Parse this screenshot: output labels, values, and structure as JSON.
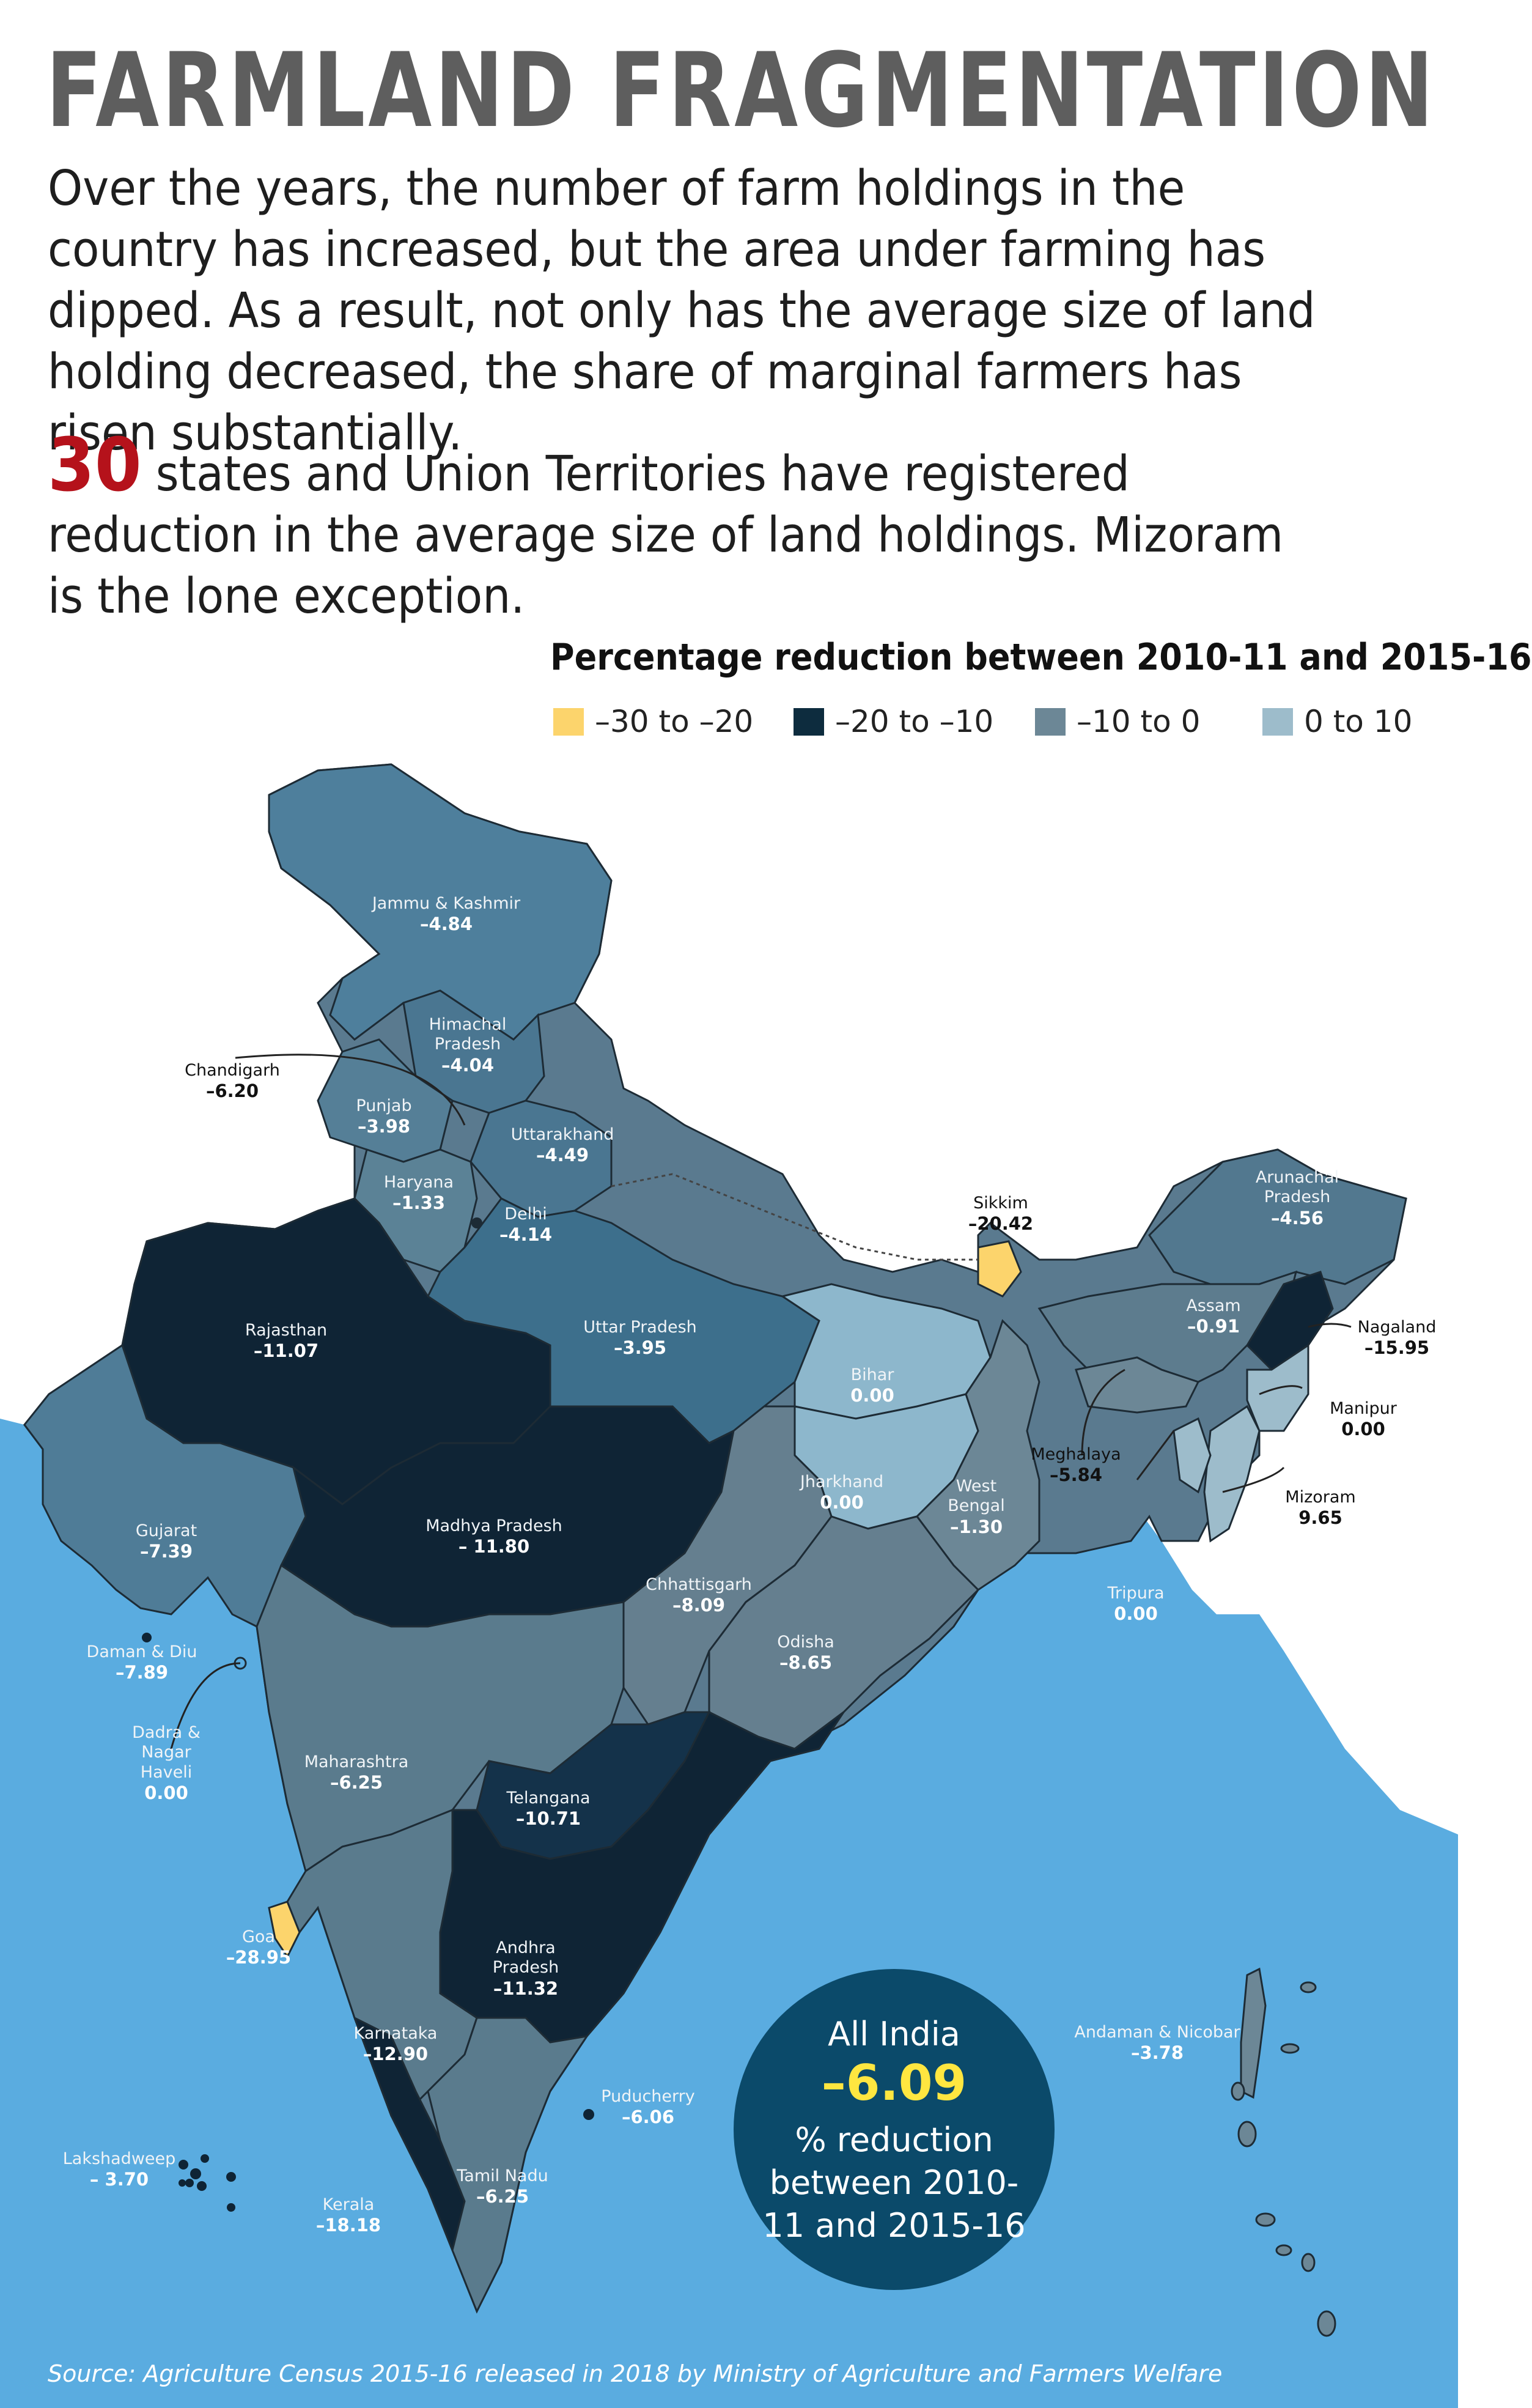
{
  "title": "FARMLAND FRAGMENTATION",
  "intro": "Over the years, the number of farm holdings in the country has increased, but the area under farming has dipped. As a result, not only has the average size of land holding decreased, the share of marginal farmers has risen substantially.",
  "stat": {
    "number": "30",
    "text": "states and Union Territories have registered reduction in the average size of land holdings. Mizoram is the lone exception."
  },
  "legend": {
    "title": "Percentage reduction between 2010-11 and 2015-16",
    "items": [
      {
        "label": "–30 to –20",
        "color": "#fcd46c"
      },
      {
        "label": "–20 to –10",
        "color": "#0d2c3e"
      },
      {
        "label": "–10 to 0",
        "color": "#6c8796"
      },
      {
        "label": "0 to 10",
        "color": "#9dbccb"
      }
    ]
  },
  "regions": [
    {
      "name": "Jammu & Kashmir",
      "value": "–4.84"
    },
    {
      "name": "Himachal Pradesh",
      "value": "–4.04"
    },
    {
      "name": "Chandigarh",
      "value": "–6.20"
    },
    {
      "name": "Punjab",
      "value": "–3.98"
    },
    {
      "name": "Uttarakhand",
      "value": "–4.49"
    },
    {
      "name": "Haryana",
      "value": "–1.33"
    },
    {
      "name": "Delhi",
      "value": "–4.14"
    },
    {
      "name": "Sikkim",
      "value": "–20.42"
    },
    {
      "name": "Arunachal Pradesh",
      "value": "–4.56"
    },
    {
      "name": "Rajasthan",
      "value": "–11.07"
    },
    {
      "name": "Uttar Pradesh",
      "value": "–3.95"
    },
    {
      "name": "Assam",
      "value": "–0.91"
    },
    {
      "name": "Nagaland",
      "value": "–15.95"
    },
    {
      "name": "Bihar",
      "value": "0.00"
    },
    {
      "name": "Manipur",
      "value": "0.00"
    },
    {
      "name": "Meghalaya",
      "value": "–5.84"
    },
    {
      "name": "Jharkhand",
      "value": "0.00"
    },
    {
      "name": "West Bengal",
      "value": "–1.30"
    },
    {
      "name": "Mizoram",
      "value": "9.65"
    },
    {
      "name": "Gujarat",
      "value": "–7.39"
    },
    {
      "name": "Madhya Pradesh",
      "value": "– 11.80"
    },
    {
      "name": "Tripura",
      "value": "0.00"
    },
    {
      "name": "Chhattisgarh",
      "value": "–8.09"
    },
    {
      "name": "Daman & Diu",
      "value": "–7.89"
    },
    {
      "name": "Odisha",
      "value": "–8.65"
    },
    {
      "name": "Dadra & Nagar Haveli",
      "value": "0.00"
    },
    {
      "name": "Maharashtra",
      "value": "–6.25"
    },
    {
      "name": "Telangana",
      "value": "–10.71"
    },
    {
      "name": "Goa",
      "value": "–28.95"
    },
    {
      "name": "Andhra Pradesh",
      "value": "–11.32"
    },
    {
      "name": "Andaman & Nicobar",
      "value": "–3.78"
    },
    {
      "name": "Karnataka",
      "value": "–12.90"
    },
    {
      "name": "Puducherry",
      "value": "–6.06"
    },
    {
      "name": "Lakshadweep",
      "value": "– 3.70"
    },
    {
      "name": "Tamil Nadu",
      "value": "–6.25"
    },
    {
      "name": "Kerala",
      "value": "–18.18"
    }
  ],
  "all_india": {
    "label": "All India",
    "value": "–6.09",
    "description": "% reduction between 2010-11 and 2015-16"
  },
  "source": "Source: Agriculture Census 2015-16 released in 2018 by Ministry of Agriculture and Farmers Welfare",
  "colors": {
    "sea": "#5aace0",
    "title": "#5e5e5e",
    "accent_red": "#b5121b",
    "circle": "#0b4a6a",
    "highlight": "#ffe640"
  }
}
